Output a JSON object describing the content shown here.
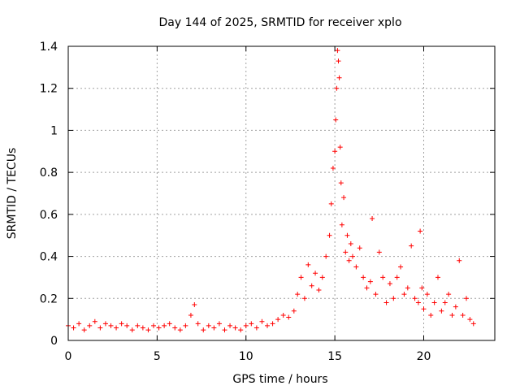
{
  "chart_data": {
    "type": "scatter",
    "title": "Day 144 of 2025, SRMTID for receiver xplo",
    "xlabel": "GPS time / hours",
    "ylabel": "SRMTID / TECUs",
    "xlim": [
      0,
      24
    ],
    "ylim": [
      0,
      1.4
    ],
    "xticks": [
      0,
      5,
      10,
      15,
      20
    ],
    "xtick_labels": [
      "0",
      "5",
      "10",
      "15",
      "20"
    ],
    "yticks": [
      0,
      0.2,
      0.4,
      0.6,
      0.8,
      1.0,
      1.2,
      1.4
    ],
    "ytick_labels": [
      "0",
      "0.2",
      "0.4",
      "0.6",
      "0.8",
      "1",
      "1.2",
      "1.4"
    ],
    "grid": true,
    "marker": "+",
    "color": "#ff0000",
    "series": [
      {
        "name": "xplo",
        "x": [
          0.0,
          0.3,
          0.6,
          0.9,
          1.2,
          1.5,
          1.8,
          2.1,
          2.4,
          2.7,
          3.0,
          3.3,
          3.6,
          3.9,
          4.2,
          4.5,
          4.8,
          5.1,
          5.4,
          5.7,
          6.0,
          6.3,
          6.6,
          6.9,
          7.1,
          7.3,
          7.6,
          7.9,
          8.2,
          8.5,
          8.8,
          9.1,
          9.4,
          9.7,
          10.0,
          10.3,
          10.6,
          10.9,
          11.2,
          11.5,
          11.8,
          12.1,
          12.4,
          12.7,
          12.9,
          13.1,
          13.3,
          13.5,
          13.7,
          13.9,
          14.1,
          14.3,
          14.5,
          14.7,
          14.8,
          14.9,
          15.0,
          15.05,
          15.1,
          15.15,
          15.2,
          15.25,
          15.3,
          15.35,
          15.4,
          15.5,
          15.6,
          15.7,
          15.8,
          15.9,
          16.0,
          16.2,
          16.4,
          16.6,
          16.8,
          17.0,
          17.1,
          17.3,
          17.5,
          17.7,
          17.9,
          18.1,
          18.3,
          18.5,
          18.7,
          18.9,
          19.1,
          19.3,
          19.5,
          19.7,
          19.8,
          19.9,
          20.0,
          20.2,
          20.4,
          20.6,
          20.8,
          21.0,
          21.2,
          21.4,
          21.6,
          21.8,
          22.0,
          22.2,
          22.4,
          22.6,
          22.8
        ],
        "y": [
          0.07,
          0.06,
          0.08,
          0.05,
          0.07,
          0.09,
          0.06,
          0.08,
          0.07,
          0.06,
          0.08,
          0.07,
          0.05,
          0.07,
          0.06,
          0.05,
          0.07,
          0.06,
          0.07,
          0.08,
          0.06,
          0.05,
          0.07,
          0.12,
          0.17,
          0.08,
          0.05,
          0.07,
          0.06,
          0.08,
          0.05,
          0.07,
          0.06,
          0.05,
          0.07,
          0.08,
          0.06,
          0.09,
          0.07,
          0.08,
          0.1,
          0.12,
          0.11,
          0.14,
          0.22,
          0.3,
          0.2,
          0.36,
          0.26,
          0.32,
          0.24,
          0.3,
          0.4,
          0.5,
          0.65,
          0.82,
          0.9,
          1.05,
          1.2,
          1.38,
          1.33,
          1.25,
          0.92,
          0.75,
          0.55,
          0.68,
          0.42,
          0.5,
          0.38,
          0.46,
          0.4,
          0.35,
          0.44,
          0.3,
          0.25,
          0.28,
          0.58,
          0.22,
          0.42,
          0.3,
          0.18,
          0.27,
          0.2,
          0.3,
          0.35,
          0.22,
          0.25,
          0.45,
          0.2,
          0.18,
          0.52,
          0.25,
          0.15,
          0.22,
          0.12,
          0.18,
          0.3,
          0.14,
          0.18,
          0.22,
          0.12,
          0.16,
          0.38,
          0.12,
          0.2,
          0.1,
          0.08
        ]
      }
    ]
  }
}
